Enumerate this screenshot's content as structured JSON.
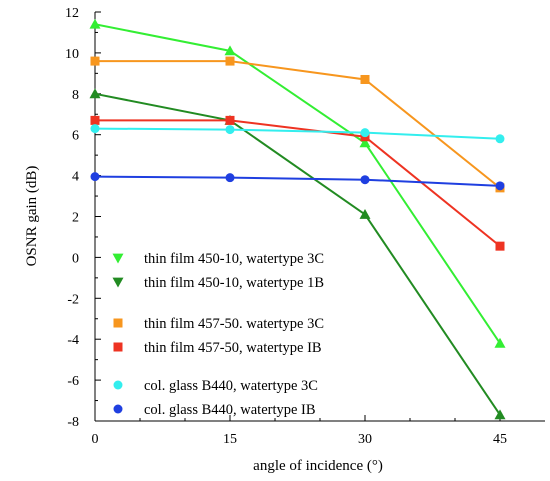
{
  "chart_data": {
    "type": "line",
    "xlabel": "angle of incidence  (°)",
    "ylabel": "OSNR gain (dB)",
    "xlim": [
      0,
      50
    ],
    "ylim": [
      -8,
      12
    ],
    "x_ticks": [
      0,
      15,
      30,
      45
    ],
    "y_ticks": [
      -8,
      -6,
      -4,
      -2,
      0,
      2,
      4,
      6,
      8,
      10,
      12
    ],
    "x": [
      0,
      15,
      30,
      45
    ],
    "grid": false,
    "legend_position": "lower-left",
    "series": [
      {
        "name": "thin film 450-10, watertype 3C",
        "marker": "triangle-down-legend",
        "color": "#33ee33",
        "values": [
          11.4,
          10.1,
          5.6,
          -4.2
        ],
        "legend_group": 0
      },
      {
        "name": "thin film 450-10, watertype 1B",
        "marker": "triangle-down-legend",
        "color": "#228b22",
        "values": [
          8.0,
          6.7,
          2.1,
          -7.7
        ],
        "legend_group": 0
      },
      {
        "name": "thin film 457-50. watertype 3C",
        "marker": "square",
        "color": "#f7961e",
        "values": [
          9.6,
          9.6,
          8.7,
          3.4
        ],
        "legend_group": 1
      },
      {
        "name": "thin film 457-50, watertype IB",
        "marker": "square",
        "color": "#ee3322",
        "values": [
          6.7,
          6.7,
          5.9,
          0.55
        ],
        "legend_group": 1
      },
      {
        "name": "col. glass B440, watertype 3C",
        "marker": "circle",
        "color": "#33eeee",
        "values": [
          6.3,
          6.25,
          6.1,
          5.8
        ],
        "legend_group": 2
      },
      {
        "name": "col. glass B440, watertype IB",
        "marker": "circle",
        "color": "#1f3fe0",
        "values": [
          3.95,
          3.9,
          3.8,
          3.5
        ],
        "legend_group": 2
      }
    ]
  }
}
